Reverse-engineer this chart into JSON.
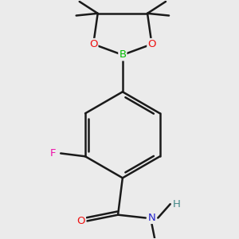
{
  "background_color": "#ebebeb",
  "bond_color": "#1a1a1a",
  "bond_width": 1.8,
  "atom_colors": {
    "B": "#00bb00",
    "O": "#ee1111",
    "F": "#ee11aa",
    "N": "#2222cc",
    "H": "#448888",
    "C": "#1a1a1a"
  },
  "figsize": [
    3.0,
    3.0
  ],
  "dpi": 100
}
